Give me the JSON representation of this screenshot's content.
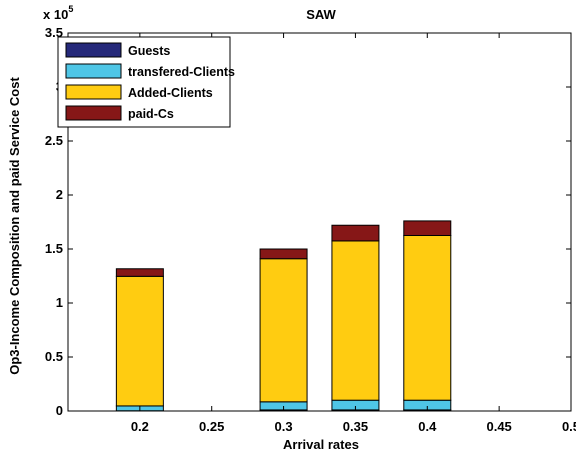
{
  "chart_data": {
    "type": "bar",
    "stacked": true,
    "title": "SAW",
    "xlabel": "Arrival rates",
    "ylabel": "Op3-Income Composition and paid Service Cost",
    "y_exponent_label": "x 10",
    "y_exponent_power": "5",
    "xlim": [
      0.15,
      0.5
    ],
    "ylim": [
      0,
      3.5
    ],
    "x_ticks": [
      "0.2",
      "0.25",
      "0.3",
      "0.35",
      "0.4",
      "0.45",
      "0.5"
    ],
    "y_ticks": [
      "0",
      "0.5",
      "1",
      "1.5",
      "2",
      "2.5",
      "3",
      "3.5"
    ],
    "x": [
      0.2,
      0.3,
      0.35,
      0.4
    ],
    "series": [
      {
        "name": "Guests",
        "color": "#25297a",
        "values": [
          0.002,
          0.01,
          0.01,
          0.01
        ]
      },
      {
        "name": "transfered-Clients",
        "color": "#4fc6e6",
        "values": [
          0.045,
          0.075,
          0.09,
          0.09
        ]
      },
      {
        "name": "Added-Clients",
        "color": "#ffcc11",
        "values": [
          1.2,
          1.325,
          1.475,
          1.525
        ]
      },
      {
        "name": "paid-Cs",
        "color": "#861717",
        "values": [
          0.07,
          0.09,
          0.145,
          0.135
        ]
      }
    ],
    "legend_position": "top-left",
    "grid": false
  }
}
